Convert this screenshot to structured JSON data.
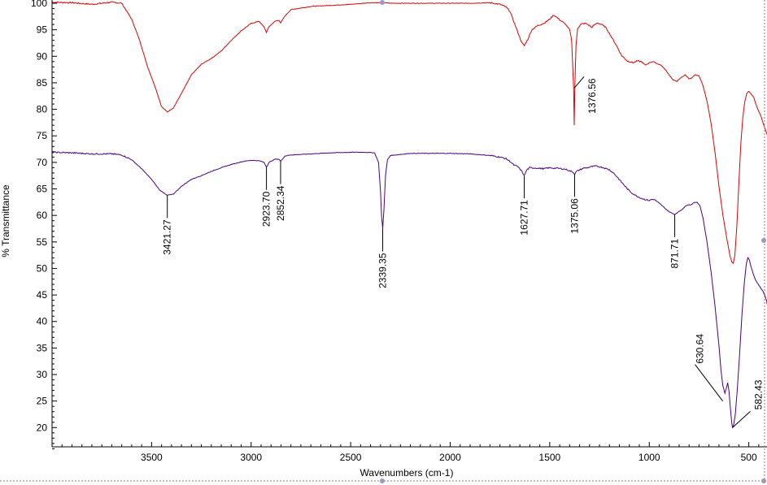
{
  "chart_data": {
    "type": "line",
    "xlabel": "Wavenumbers (cm-1)",
    "ylabel": "% Transmittance",
    "xlim": [
      4000,
      400
    ],
    "ylim": [
      15,
      100
    ],
    "x_ticks": [
      3500,
      3000,
      2500,
      2000,
      1500,
      1000,
      500
    ],
    "y_ticks": [
      20,
      25,
      30,
      35,
      40,
      45,
      50,
      55,
      60,
      65,
      70,
      75,
      80,
      85,
      90,
      95,
      100
    ],
    "grid": false,
    "series": [
      {
        "color": "#e00000",
        "points": [
          [
            4000,
            100.2
          ],
          [
            3900,
            100.1
          ],
          [
            3800,
            99.8
          ],
          [
            3700,
            100.2
          ],
          [
            3650,
            100.0
          ],
          [
            3600,
            97
          ],
          [
            3560,
            93
          ],
          [
            3520,
            88
          ],
          [
            3480,
            84
          ],
          [
            3450,
            80.5
          ],
          [
            3421,
            79.5
          ],
          [
            3390,
            80.3
          ],
          [
            3350,
            83
          ],
          [
            3300,
            86.5
          ],
          [
            3250,
            88.5
          ],
          [
            3200,
            89.6
          ],
          [
            3150,
            91
          ],
          [
            3100,
            93
          ],
          [
            3050,
            94.8
          ],
          [
            3000,
            96.2
          ],
          [
            2960,
            96.6
          ],
          [
            2935,
            95.5
          ],
          [
            2923,
            94.5
          ],
          [
            2910,
            95.6
          ],
          [
            2880,
            96.6
          ],
          [
            2860,
            96.8
          ],
          [
            2852,
            96.3
          ],
          [
            2830,
            97.6
          ],
          [
            2800,
            98.8
          ],
          [
            2700,
            99.4
          ],
          [
            2600,
            99.6
          ],
          [
            2500,
            99.8
          ],
          [
            2400,
            100.1
          ],
          [
            2340,
            100.1
          ],
          [
            2300,
            100.0
          ],
          [
            2200,
            100.0
          ],
          [
            2100,
            100.0
          ],
          [
            2000,
            100.0
          ],
          [
            1900,
            100.0
          ],
          [
            1800,
            100.1
          ],
          [
            1750,
            99.8
          ],
          [
            1720,
            99.3
          ],
          [
            1700,
            98.5
          ],
          [
            1680,
            96.5
          ],
          [
            1660,
            94.5
          ],
          [
            1640,
            92.5
          ],
          [
            1628,
            92.0
          ],
          [
            1610,
            93.2
          ],
          [
            1590,
            95.0
          ],
          [
            1560,
            95.8
          ],
          [
            1530,
            96.2
          ],
          [
            1500,
            97.0
          ],
          [
            1480,
            97.8
          ],
          [
            1460,
            97.2
          ],
          [
            1440,
            96.6
          ],
          [
            1420,
            96.0
          ],
          [
            1400,
            95.0
          ],
          [
            1390,
            93.0
          ],
          [
            1380,
            84
          ],
          [
            1377,
            77
          ],
          [
            1374,
            84
          ],
          [
            1368,
            92.0
          ],
          [
            1360,
            95.3
          ],
          [
            1340,
            96.1
          ],
          [
            1320,
            96.2
          ],
          [
            1300,
            95.8
          ],
          [
            1290,
            95.4
          ],
          [
            1280,
            95.8
          ],
          [
            1260,
            96.3
          ],
          [
            1240,
            96.0
          ],
          [
            1220,
            95.5
          ],
          [
            1200,
            94.3
          ],
          [
            1180,
            93.0
          ],
          [
            1160,
            91.7
          ],
          [
            1140,
            90.2
          ],
          [
            1110,
            89.1
          ],
          [
            1080,
            88.8
          ],
          [
            1060,
            89.1
          ],
          [
            1040,
            89.0
          ],
          [
            1020,
            88.3
          ],
          [
            1000,
            88.8
          ],
          [
            980,
            89.0
          ],
          [
            960,
            88.6
          ],
          [
            940,
            88.3
          ],
          [
            920,
            87.5
          ],
          [
            900,
            86.5
          ],
          [
            880,
            85.5
          ],
          [
            860,
            85.3
          ],
          [
            840,
            86.0
          ],
          [
            820,
            86.5
          ],
          [
            800,
            85.8
          ],
          [
            790,
            85.8
          ],
          [
            770,
            86.5
          ],
          [
            750,
            86.3
          ],
          [
            730,
            84.5
          ],
          [
            710,
            81.5
          ],
          [
            690,
            77.5
          ],
          [
            670,
            72
          ],
          [
            650,
            65.5
          ],
          [
            630,
            60
          ],
          [
            610,
            55.5
          ],
          [
            595,
            52.5
          ],
          [
            585,
            51.2
          ],
          [
            578,
            51.0
          ],
          [
            570,
            52.5
          ],
          [
            560,
            58
          ],
          [
            550,
            66
          ],
          [
            540,
            73.5
          ],
          [
            530,
            78.5
          ],
          [
            520,
            81.5
          ],
          [
            510,
            83.0
          ],
          [
            500,
            83.4
          ],
          [
            490,
            83.0
          ],
          [
            475,
            82.2
          ],
          [
            460,
            80.5
          ],
          [
            440,
            78.8
          ],
          [
            420,
            76.5
          ],
          [
            410,
            75.5
          ],
          [
            400,
            74.2
          ]
        ]
      },
      {
        "color": "#4b0082",
        "points": [
          [
            4000,
            71.9
          ],
          [
            3900,
            71.8
          ],
          [
            3800,
            71.6
          ],
          [
            3700,
            71.6
          ],
          [
            3650,
            71.4
          ],
          [
            3600,
            70.5
          ],
          [
            3550,
            68.8
          ],
          [
            3500,
            66.8
          ],
          [
            3460,
            64.8
          ],
          [
            3421,
            63.8
          ],
          [
            3390,
            64.0
          ],
          [
            3350,
            65.5
          ],
          [
            3300,
            66.8
          ],
          [
            3250,
            67.5
          ],
          [
            3200,
            68.3
          ],
          [
            3150,
            69.0
          ],
          [
            3100,
            69.6
          ],
          [
            3050,
            70.1
          ],
          [
            3000,
            70.4
          ],
          [
            2960,
            70.3
          ],
          [
            2935,
            70.0
          ],
          [
            2923,
            69.1
          ],
          [
            2910,
            70.0
          ],
          [
            2880,
            70.6
          ],
          [
            2860,
            70.6
          ],
          [
            2852,
            70.2
          ],
          [
            2830,
            71.2
          ],
          [
            2800,
            71.4
          ],
          [
            2700,
            71.6
          ],
          [
            2600,
            71.8
          ],
          [
            2500,
            71.9
          ],
          [
            2420,
            71.9
          ],
          [
            2380,
            71.8
          ],
          [
            2360,
            70.0
          ],
          [
            2350,
            64.5
          ],
          [
            2345,
            60.0
          ],
          [
            2339,
            57.5
          ],
          [
            2333,
            61.0
          ],
          [
            2325,
            67.5
          ],
          [
            2315,
            70.5
          ],
          [
            2300,
            71.3
          ],
          [
            2200,
            71.7
          ],
          [
            2100,
            71.7
          ],
          [
            2000,
            71.7
          ],
          [
            1900,
            71.6
          ],
          [
            1800,
            71.3
          ],
          [
            1750,
            71.0
          ],
          [
            1720,
            70.7
          ],
          [
            1700,
            70.2
          ],
          [
            1680,
            69.5
          ],
          [
            1660,
            69.2
          ],
          [
            1640,
            68.3
          ],
          [
            1628,
            67.5
          ],
          [
            1615,
            68.6
          ],
          [
            1600,
            69.0
          ],
          [
            1560,
            68.9
          ],
          [
            1530,
            68.8
          ],
          [
            1500,
            69.0
          ],
          [
            1480,
            68.9
          ],
          [
            1460,
            68.9
          ],
          [
            1440,
            68.8
          ],
          [
            1420,
            68.7
          ],
          [
            1400,
            68.4
          ],
          [
            1385,
            68.2
          ],
          [
            1375,
            67.8
          ],
          [
            1365,
            68.3
          ],
          [
            1350,
            68.6
          ],
          [
            1330,
            68.9
          ],
          [
            1310,
            69.0
          ],
          [
            1290,
            69.2
          ],
          [
            1270,
            69.3
          ],
          [
            1250,
            69.2
          ],
          [
            1230,
            69.0
          ],
          [
            1200,
            68.6
          ],
          [
            1180,
            68.0
          ],
          [
            1160,
            67.2
          ],
          [
            1140,
            66.3
          ],
          [
            1110,
            65.0
          ],
          [
            1090,
            64.3
          ],
          [
            1070,
            63.8
          ],
          [
            1050,
            63.4
          ],
          [
            1030,
            63.1
          ],
          [
            1010,
            62.9
          ],
          [
            1000,
            62.8
          ],
          [
            990,
            63.0
          ],
          [
            975,
            63.0
          ],
          [
            960,
            62.6
          ],
          [
            940,
            62.0
          ],
          [
            920,
            61.3
          ],
          [
            900,
            60.7
          ],
          [
            885,
            60.4
          ],
          [
            872,
            60.2
          ],
          [
            860,
            60.5
          ],
          [
            840,
            61.0
          ],
          [
            825,
            61.5
          ],
          [
            810,
            62.0
          ],
          [
            800,
            62.0
          ],
          [
            790,
            62.0
          ],
          [
            775,
            62.4
          ],
          [
            760,
            62.5
          ],
          [
            745,
            61.8
          ],
          [
            730,
            59.5
          ],
          [
            710,
            55.0
          ],
          [
            690,
            49.5
          ],
          [
            670,
            43.0
          ],
          [
            650,
            35.5
          ],
          [
            640,
            31.0
          ],
          [
            631,
            28.0
          ],
          [
            620,
            26.5
          ],
          [
            612,
            27.5
          ],
          [
            606,
            28.5
          ],
          [
            600,
            27.0
          ],
          [
            592,
            23.5
          ],
          [
            586,
            21.0
          ],
          [
            582,
            20.0
          ],
          [
            576,
            20.5
          ],
          [
            568,
            22.5
          ],
          [
            558,
            27.0
          ],
          [
            546,
            34.0
          ],
          [
            534,
            41.5
          ],
          [
            522,
            47.5
          ],
          [
            512,
            51.0
          ],
          [
            505,
            52.0
          ],
          [
            498,
            51.7
          ],
          [
            490,
            50.5
          ],
          [
            478,
            49.0
          ],
          [
            466,
            47.8
          ],
          [
            452,
            47.0
          ],
          [
            440,
            46.3
          ],
          [
            428,
            45.6
          ],
          [
            418,
            44.8
          ],
          [
            410,
            43.8
          ],
          [
            400,
            41.8
          ]
        ]
      }
    ],
    "annotations": [
      {
        "text": "1376.56",
        "x": 1377,
        "y": 84,
        "series": 0,
        "orient": "up"
      },
      {
        "text": "3421.27",
        "x": 3421,
        "y": 63.8,
        "series": 1,
        "orient": "down"
      },
      {
        "text": "2923.70",
        "x": 2923,
        "y": 69.1,
        "series": 1,
        "orient": "down"
      },
      {
        "text": "2852.34",
        "x": 2852,
        "y": 70.2,
        "series": 1,
        "orient": "down"
      },
      {
        "text": "2339.35",
        "x": 2339,
        "y": 57.5,
        "series": 1,
        "orient": "down"
      },
      {
        "text": "1627.71",
        "x": 1628,
        "y": 67.5,
        "series": 1,
        "orient": "down"
      },
      {
        "text": "1375.06",
        "x": 1375,
        "y": 67.8,
        "series": 1,
        "orient": "down"
      },
      {
        "text": "871.71",
        "x": 872,
        "y": 60.2,
        "series": 1,
        "orient": "down"
      },
      {
        "text": "630.64",
        "x": 631,
        "y": 25.0,
        "series": 1,
        "orient": "up-left"
      },
      {
        "text": "582.43",
        "x": 582,
        "y": 20.0,
        "series": 1,
        "orient": "up-right"
      }
    ]
  }
}
